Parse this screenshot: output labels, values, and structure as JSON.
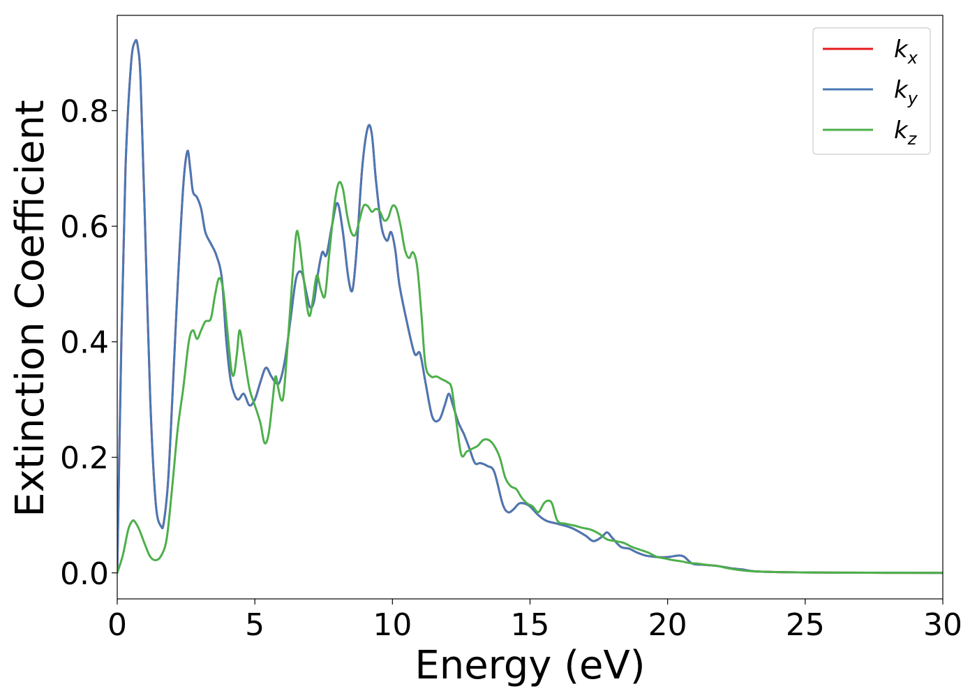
{
  "chart_data": {
    "type": "line",
    "xlabel": "Energy (eV)",
    "ylabel": "Extinction Coefficient",
    "xlim": [
      0,
      30
    ],
    "ylim": [
      -0.045,
      0.965
    ],
    "xticks": [
      0,
      5,
      10,
      15,
      20,
      25,
      30
    ],
    "xtick_labels": [
      "0",
      "5",
      "10",
      "15",
      "20",
      "25",
      "30"
    ],
    "yticks": [
      0.0,
      0.2,
      0.4,
      0.6,
      0.8
    ],
    "ytick_labels": [
      "0.0",
      "0.2",
      "0.4",
      "0.6",
      "0.8"
    ],
    "grid": false,
    "legend_position": "top-right",
    "series": [
      {
        "name": "k_x",
        "label_main": "k",
        "label_sub": "x",
        "color": "#e41a1c",
        "x": [
          0,
          0.15,
          0.3,
          0.5,
          0.65,
          0.75,
          0.85,
          1.0,
          1.2,
          1.4,
          1.6,
          1.7,
          1.85,
          2.0,
          2.2,
          2.4,
          2.55,
          2.65,
          2.75,
          2.9,
          3.05,
          3.2,
          3.4,
          3.6,
          3.8,
          3.95,
          4.1,
          4.25,
          4.4,
          4.6,
          4.8,
          5.0,
          5.2,
          5.4,
          5.6,
          5.75,
          5.9,
          6.1,
          6.3,
          6.5,
          6.7,
          6.85,
          7.0,
          7.15,
          7.3,
          7.45,
          7.6,
          7.8,
          8.0,
          8.2,
          8.4,
          8.55,
          8.7,
          8.9,
          9.1,
          9.25,
          9.4,
          9.6,
          9.8,
          9.95,
          10.1,
          10.25,
          10.5,
          10.8,
          11.0,
          11.2,
          11.45,
          11.7,
          11.9,
          12.05,
          12.2,
          12.4,
          12.6,
          12.8,
          13.0,
          13.2,
          13.45,
          13.7,
          14.0,
          14.2,
          14.4,
          14.6,
          14.8,
          15.0,
          15.3,
          15.6,
          16.0,
          16.5,
          17.0,
          17.3,
          17.6,
          17.8,
          18.0,
          18.3,
          18.6,
          18.9,
          19.2,
          19.5,
          19.8,
          20.1,
          20.4,
          20.6,
          20.9,
          21.3,
          21.8,
          22.3,
          22.7,
          23.1,
          23.5,
          24.5,
          26.0,
          28.0,
          30.0
        ],
        "y": [
          0.0,
          0.4,
          0.7,
          0.88,
          0.92,
          0.91,
          0.85,
          0.62,
          0.3,
          0.12,
          0.08,
          0.09,
          0.16,
          0.3,
          0.5,
          0.67,
          0.73,
          0.7,
          0.66,
          0.65,
          0.63,
          0.59,
          0.57,
          0.55,
          0.51,
          0.41,
          0.34,
          0.31,
          0.3,
          0.31,
          0.29,
          0.3,
          0.33,
          0.355,
          0.34,
          0.33,
          0.33,
          0.37,
          0.44,
          0.51,
          0.52,
          0.49,
          0.46,
          0.47,
          0.52,
          0.555,
          0.55,
          0.6,
          0.64,
          0.59,
          0.51,
          0.49,
          0.56,
          0.7,
          0.77,
          0.76,
          0.68,
          0.6,
          0.575,
          0.59,
          0.56,
          0.5,
          0.44,
          0.38,
          0.38,
          0.33,
          0.27,
          0.265,
          0.29,
          0.31,
          0.29,
          0.26,
          0.24,
          0.215,
          0.19,
          0.19,
          0.185,
          0.175,
          0.12,
          0.105,
          0.11,
          0.12,
          0.12,
          0.115,
          0.1,
          0.09,
          0.085,
          0.078,
          0.065,
          0.055,
          0.062,
          0.07,
          0.06,
          0.045,
          0.042,
          0.035,
          0.03,
          0.028,
          0.027,
          0.028,
          0.03,
          0.028,
          0.016,
          0.014,
          0.012,
          0.008,
          0.006,
          0.003,
          0.002,
          0.001,
          0.0005,
          0.0002,
          0.0
        ]
      },
      {
        "name": "k_y",
        "label_main": "k",
        "label_sub": "y",
        "color": "#4a78b4",
        "x": [
          0,
          0.15,
          0.3,
          0.5,
          0.65,
          0.75,
          0.85,
          1.0,
          1.2,
          1.4,
          1.6,
          1.7,
          1.85,
          2.0,
          2.2,
          2.4,
          2.55,
          2.65,
          2.75,
          2.9,
          3.05,
          3.2,
          3.4,
          3.6,
          3.8,
          3.95,
          4.1,
          4.25,
          4.4,
          4.6,
          4.8,
          5.0,
          5.2,
          5.4,
          5.6,
          5.75,
          5.9,
          6.1,
          6.3,
          6.5,
          6.7,
          6.85,
          7.0,
          7.15,
          7.3,
          7.45,
          7.6,
          7.8,
          8.0,
          8.2,
          8.4,
          8.55,
          8.7,
          8.9,
          9.1,
          9.25,
          9.4,
          9.6,
          9.8,
          9.95,
          10.1,
          10.25,
          10.5,
          10.8,
          11.0,
          11.2,
          11.45,
          11.7,
          11.9,
          12.05,
          12.2,
          12.4,
          12.6,
          12.8,
          13.0,
          13.2,
          13.45,
          13.7,
          14.0,
          14.2,
          14.4,
          14.6,
          14.8,
          15.0,
          15.3,
          15.6,
          16.0,
          16.5,
          17.0,
          17.3,
          17.6,
          17.8,
          18.0,
          18.3,
          18.6,
          18.9,
          19.2,
          19.5,
          19.8,
          20.1,
          20.4,
          20.6,
          20.9,
          21.3,
          21.8,
          22.3,
          22.7,
          23.1,
          23.5,
          24.5,
          26.0,
          28.0,
          30.0
        ],
        "y": [
          0.0,
          0.4,
          0.7,
          0.88,
          0.92,
          0.91,
          0.85,
          0.62,
          0.3,
          0.12,
          0.08,
          0.09,
          0.16,
          0.3,
          0.5,
          0.67,
          0.73,
          0.7,
          0.66,
          0.65,
          0.63,
          0.59,
          0.57,
          0.55,
          0.51,
          0.41,
          0.34,
          0.31,
          0.3,
          0.31,
          0.29,
          0.3,
          0.33,
          0.355,
          0.34,
          0.33,
          0.33,
          0.37,
          0.44,
          0.51,
          0.52,
          0.49,
          0.46,
          0.47,
          0.52,
          0.555,
          0.55,
          0.6,
          0.64,
          0.59,
          0.51,
          0.49,
          0.56,
          0.7,
          0.77,
          0.76,
          0.68,
          0.6,
          0.575,
          0.59,
          0.56,
          0.5,
          0.44,
          0.38,
          0.38,
          0.33,
          0.27,
          0.265,
          0.29,
          0.31,
          0.29,
          0.26,
          0.24,
          0.215,
          0.19,
          0.19,
          0.185,
          0.175,
          0.12,
          0.105,
          0.11,
          0.12,
          0.12,
          0.115,
          0.1,
          0.09,
          0.085,
          0.078,
          0.065,
          0.055,
          0.062,
          0.07,
          0.06,
          0.045,
          0.042,
          0.035,
          0.03,
          0.028,
          0.027,
          0.028,
          0.03,
          0.028,
          0.016,
          0.014,
          0.012,
          0.008,
          0.006,
          0.003,
          0.002,
          0.001,
          0.0005,
          0.0002,
          0.0
        ]
      },
      {
        "name": "k_z",
        "label_main": "k",
        "label_sub": "z",
        "color": "#4daf4a",
        "x": [
          0,
          0.2,
          0.4,
          0.55,
          0.65,
          0.8,
          1.0,
          1.2,
          1.4,
          1.6,
          1.8,
          2.0,
          2.2,
          2.4,
          2.6,
          2.75,
          2.9,
          3.05,
          3.2,
          3.4,
          3.55,
          3.7,
          3.85,
          4.0,
          4.15,
          4.25,
          4.35,
          4.45,
          4.6,
          4.8,
          5.0,
          5.2,
          5.35,
          5.5,
          5.65,
          5.75,
          5.85,
          5.95,
          6.05,
          6.2,
          6.35,
          6.5,
          6.6,
          6.75,
          6.9,
          7.0,
          7.1,
          7.25,
          7.4,
          7.55,
          7.7,
          7.9,
          8.05,
          8.2,
          8.35,
          8.5,
          8.65,
          8.8,
          8.95,
          9.1,
          9.25,
          9.4,
          9.55,
          9.7,
          9.85,
          10.0,
          10.15,
          10.3,
          10.45,
          10.6,
          10.75,
          10.9,
          11.05,
          11.2,
          11.4,
          11.6,
          11.8,
          12.0,
          12.15,
          12.3,
          12.5,
          12.7,
          12.9,
          13.1,
          13.3,
          13.5,
          13.7,
          13.9,
          14.1,
          14.3,
          14.5,
          14.7,
          14.9,
          15.1,
          15.3,
          15.5,
          15.65,
          15.8,
          16.0,
          16.3,
          16.6,
          16.9,
          17.2,
          17.5,
          17.8,
          18.1,
          18.4,
          18.7,
          19.0,
          19.3,
          19.6,
          19.9,
          20.2,
          20.5,
          20.8,
          21.1,
          21.4,
          21.8,
          22.2,
          22.6,
          23.0,
          23.5,
          24.5,
          26.0,
          28.0,
          30.0
        ],
        "y": [
          0.0,
          0.03,
          0.075,
          0.09,
          0.088,
          0.075,
          0.05,
          0.028,
          0.022,
          0.03,
          0.06,
          0.15,
          0.25,
          0.32,
          0.4,
          0.42,
          0.405,
          0.42,
          0.435,
          0.44,
          0.48,
          0.51,
          0.49,
          0.42,
          0.35,
          0.345,
          0.38,
          0.42,
          0.38,
          0.32,
          0.29,
          0.26,
          0.225,
          0.24,
          0.3,
          0.34,
          0.32,
          0.3,
          0.31,
          0.4,
          0.5,
          0.585,
          0.58,
          0.52,
          0.46,
          0.445,
          0.47,
          0.515,
          0.49,
          0.48,
          0.55,
          0.64,
          0.675,
          0.665,
          0.62,
          0.59,
          0.585,
          0.61,
          0.635,
          0.635,
          0.625,
          0.63,
          0.625,
          0.61,
          0.615,
          0.635,
          0.63,
          0.6,
          0.56,
          0.545,
          0.555,
          0.53,
          0.45,
          0.36,
          0.34,
          0.34,
          0.335,
          0.33,
          0.32,
          0.27,
          0.205,
          0.21,
          0.215,
          0.22,
          0.23,
          0.23,
          0.22,
          0.2,
          0.165,
          0.15,
          0.145,
          0.13,
          0.12,
          0.115,
          0.105,
          0.12,
          0.125,
          0.12,
          0.09,
          0.085,
          0.082,
          0.078,
          0.075,
          0.068,
          0.058,
          0.055,
          0.052,
          0.045,
          0.04,
          0.035,
          0.028,
          0.025,
          0.022,
          0.02,
          0.017,
          0.016,
          0.014,
          0.012,
          0.008,
          0.005,
          0.003,
          0.002,
          0.001,
          0.0005,
          0.0002,
          0.0
        ]
      }
    ]
  }
}
